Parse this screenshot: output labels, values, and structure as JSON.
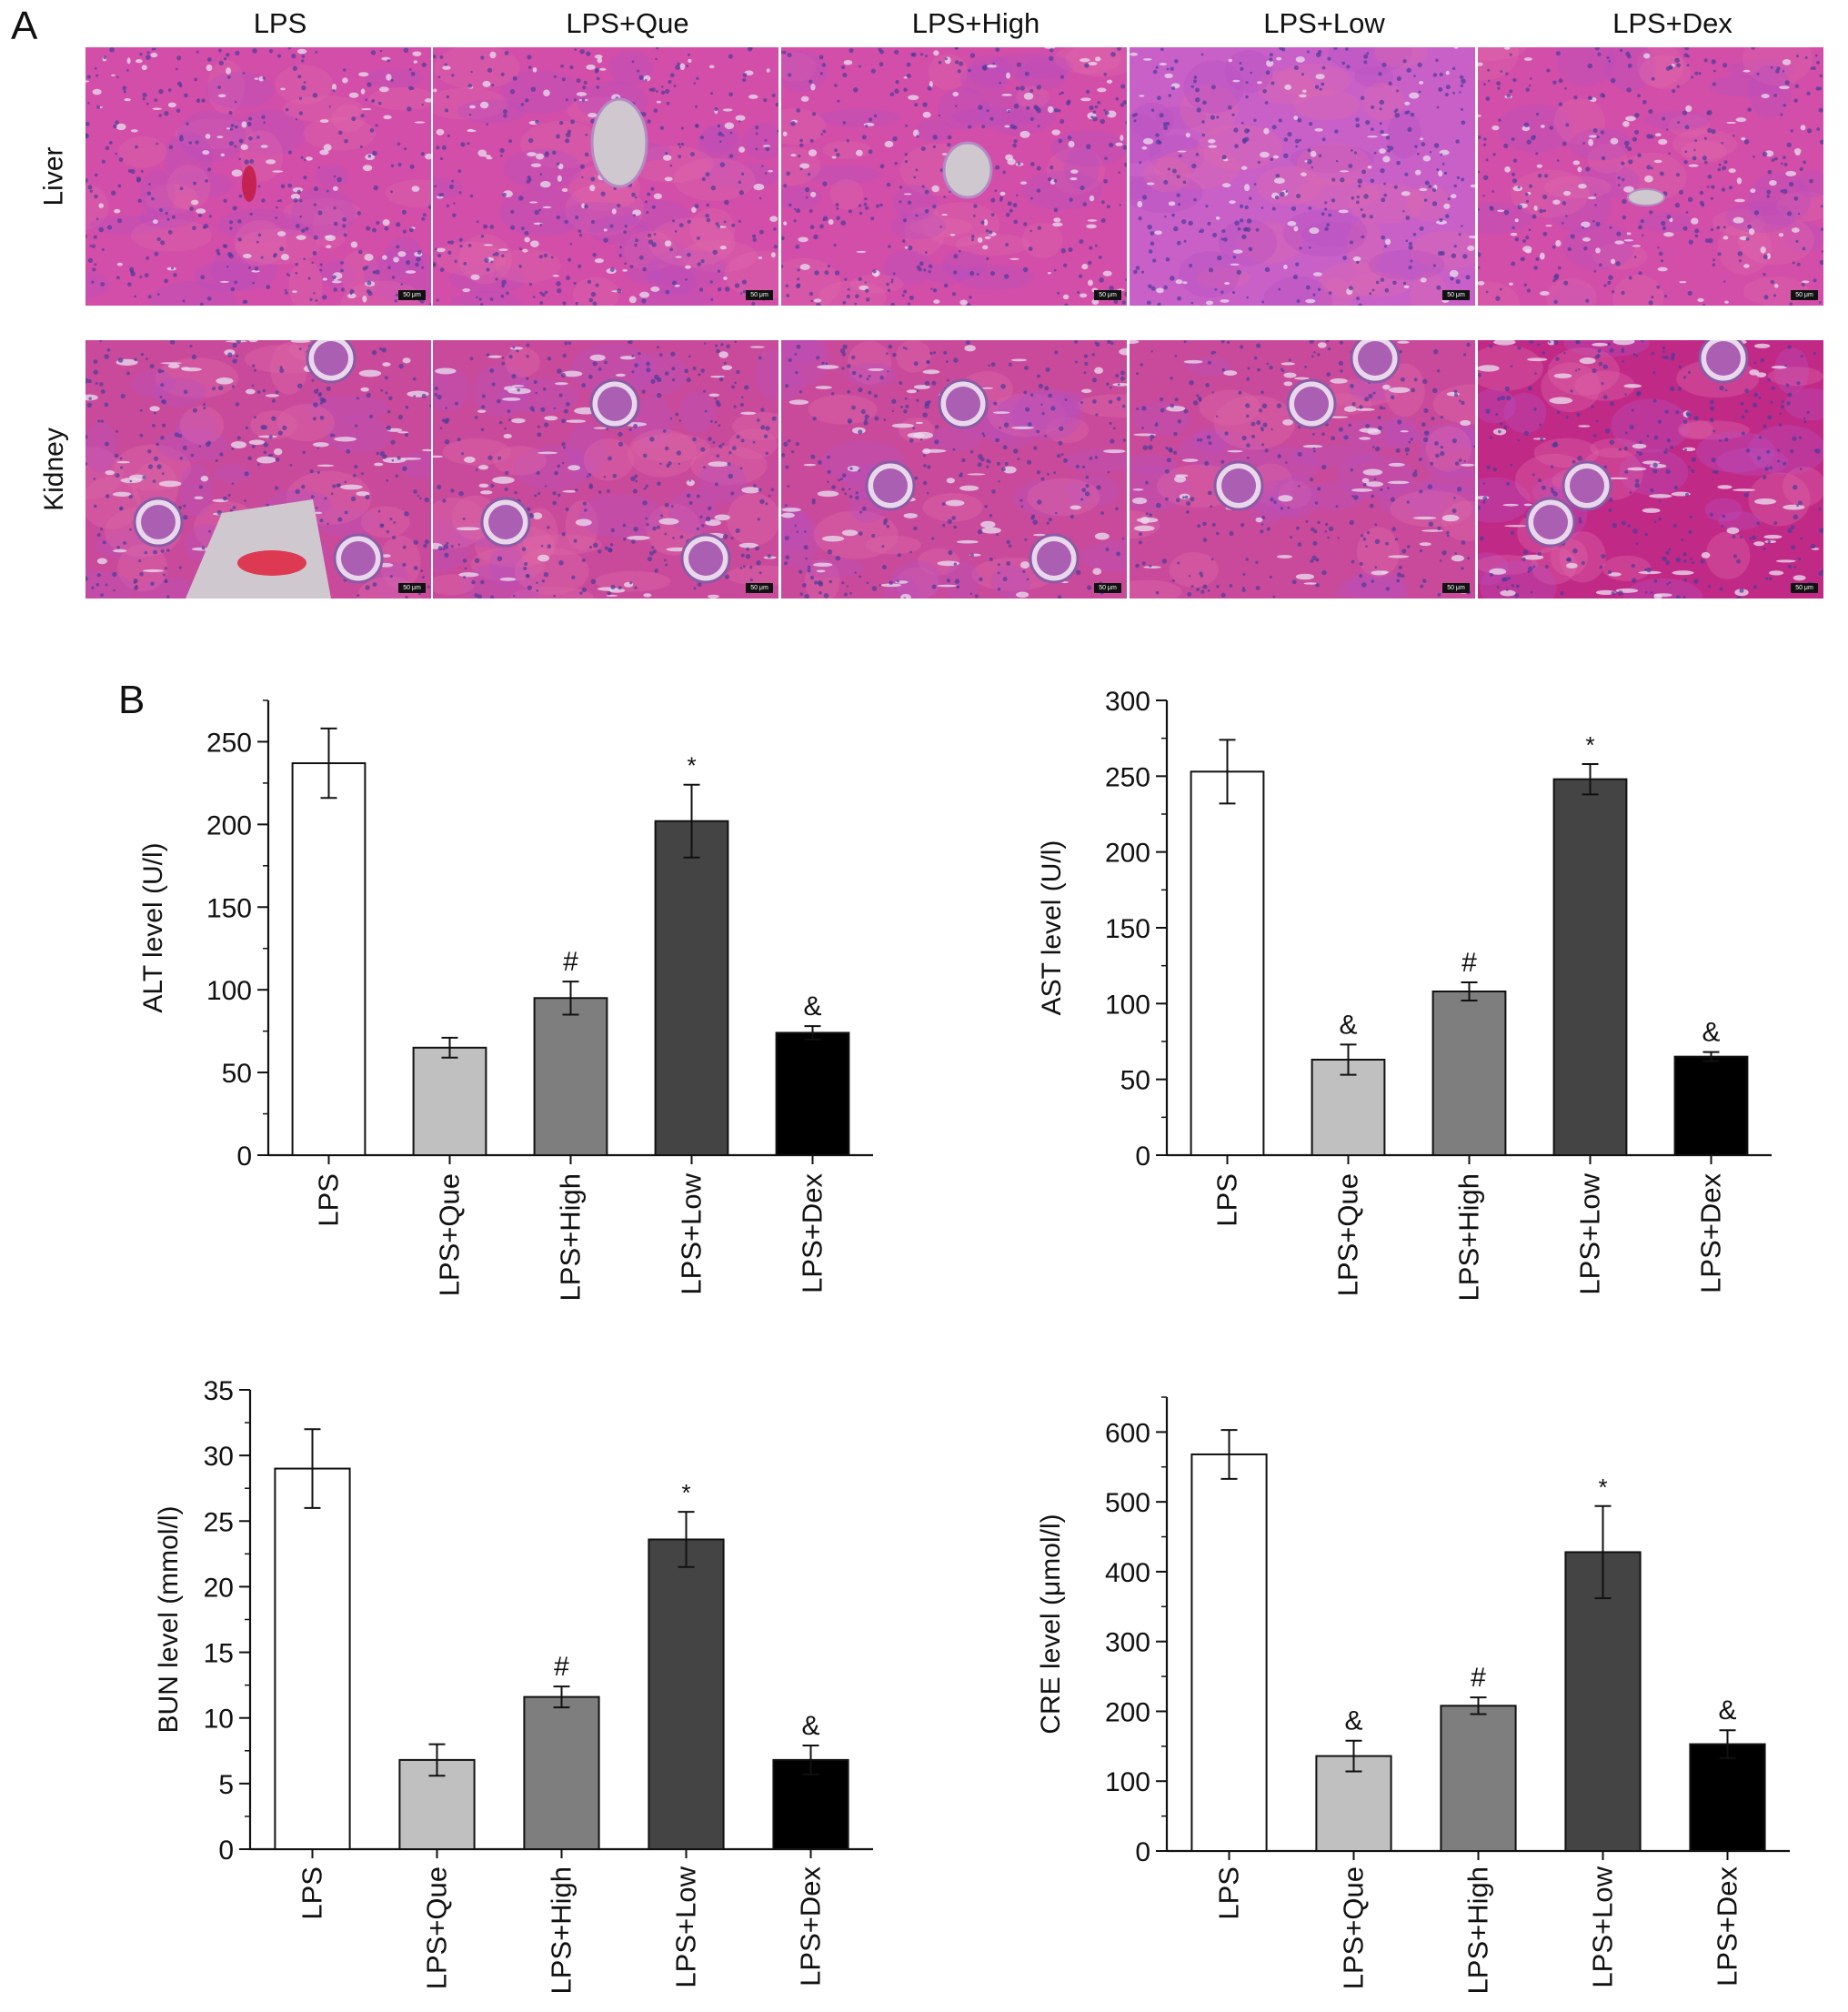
{
  "panels": {
    "a_label": "A",
    "b_label": "B"
  },
  "histology": {
    "columns": [
      "LPS",
      "LPS+Que",
      "LPS+High",
      "LPS+Low",
      "LPS+Dex"
    ],
    "rows": [
      "Liver",
      "Kidney"
    ],
    "scale_bar": "50 μm"
  },
  "chart_data": [
    {
      "type": "bar",
      "ylabel": "ALT level (U/l)",
      "categories": [
        "LPS",
        "LPS+Que",
        "LPS+High",
        "LPS+Low",
        "LPS+Dex"
      ],
      "values": [
        237,
        65,
        95,
        202,
        74
      ],
      "errors": [
        21,
        6,
        10,
        22,
        4
      ],
      "annotations": [
        "",
        "",
        "#",
        "*",
        "&"
      ],
      "bar_colors": [
        "#ffffff",
        "#c0c0c0",
        "#7e7e7e",
        "#444444",
        "#000000"
      ],
      "ylim": [
        0,
        275
      ],
      "yticks": [
        0,
        50,
        100,
        150,
        200,
        250
      ],
      "minor_tick_step": 25,
      "grid": false
    },
    {
      "type": "bar",
      "ylabel": "AST level (U/l)",
      "categories": [
        "LPS",
        "LPS+Que",
        "LPS+High",
        "LPS+Low",
        "LPS+Dex"
      ],
      "values": [
        253,
        63,
        108,
        248,
        65
      ],
      "errors": [
        21,
        10,
        6,
        10,
        3
      ],
      "annotations": [
        "",
        "&",
        "#",
        "*",
        "&"
      ],
      "bar_colors": [
        "#ffffff",
        "#c0c0c0",
        "#7e7e7e",
        "#444444",
        "#000000"
      ],
      "ylim": [
        0,
        300
      ],
      "yticks": [
        0,
        50,
        100,
        150,
        200,
        250,
        300
      ],
      "minor_tick_step": 25,
      "grid": false
    },
    {
      "type": "bar",
      "ylabel": "BUN level (mmol/l)",
      "categories": [
        "LPS",
        "LPS+Que",
        "LPS+High",
        "LPS+Low",
        "LPS+Dex"
      ],
      "values": [
        29,
        6.8,
        11.6,
        23.6,
        6.8
      ],
      "errors": [
        3,
        1.2,
        0.8,
        2.1,
        1.1
      ],
      "annotations": [
        "",
        "",
        "#",
        "*",
        "&"
      ],
      "bar_colors": [
        "#ffffff",
        "#c0c0c0",
        "#7e7e7e",
        "#444444",
        "#000000"
      ],
      "ylim": [
        0,
        35
      ],
      "yticks": [
        0,
        5,
        10,
        15,
        20,
        25,
        30,
        35
      ],
      "minor_tick_step": 2.5,
      "grid": false
    },
    {
      "type": "bar",
      "ylabel": "CRE level (μmol/l)",
      "categories": [
        "LPS",
        "LPS+Que",
        "LPS+High",
        "LPS+Low",
        "LPS+Dex"
      ],
      "values": [
        568,
        136,
        208,
        428,
        153
      ],
      "errors": [
        35,
        22,
        12,
        66,
        20
      ],
      "annotations": [
        "",
        "&",
        "#",
        "*",
        "&"
      ],
      "bar_colors": [
        "#ffffff",
        "#c0c0c0",
        "#7e7e7e",
        "#444444",
        "#000000"
      ],
      "ylim": [
        0,
        650
      ],
      "yticks": [
        0,
        100,
        200,
        300,
        400,
        500,
        600
      ],
      "minor_tick_step": 50,
      "grid": false
    }
  ]
}
